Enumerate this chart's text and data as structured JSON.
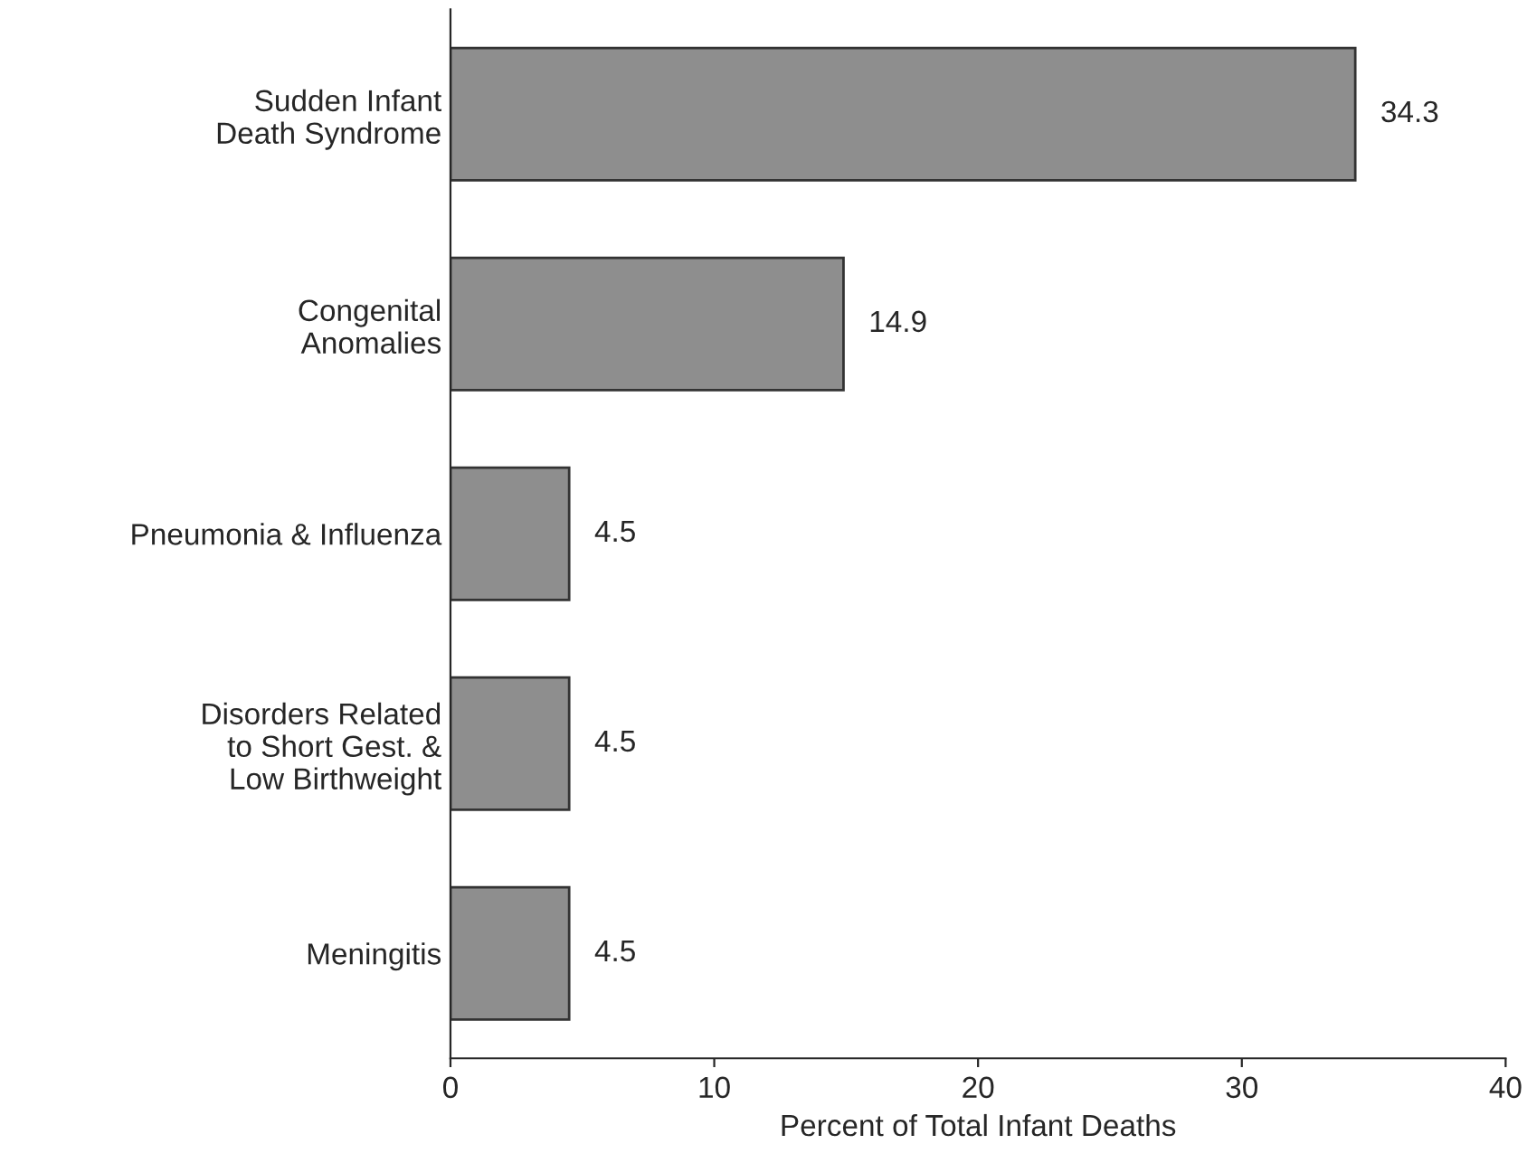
{
  "chart_data": {
    "type": "bar",
    "orientation": "horizontal",
    "xlabel": "Percent of Total Infant Deaths",
    "categories": [
      "Sudden Infant\nDeath Syndrome",
      "Congenital\nAnomalies",
      "Pneumonia & Influenza",
      "Disorders Related\nto Short Gest. &\nLow Birthweight",
      "Meningitis"
    ],
    "values": [
      34.3,
      14.9,
      4.5,
      4.5,
      4.5
    ],
    "color": "#8e8e8e",
    "xlim": [
      0,
      40
    ],
    "xticks": [
      0,
      10,
      20,
      30,
      40
    ],
    "grid": false,
    "data_labels": true
  }
}
